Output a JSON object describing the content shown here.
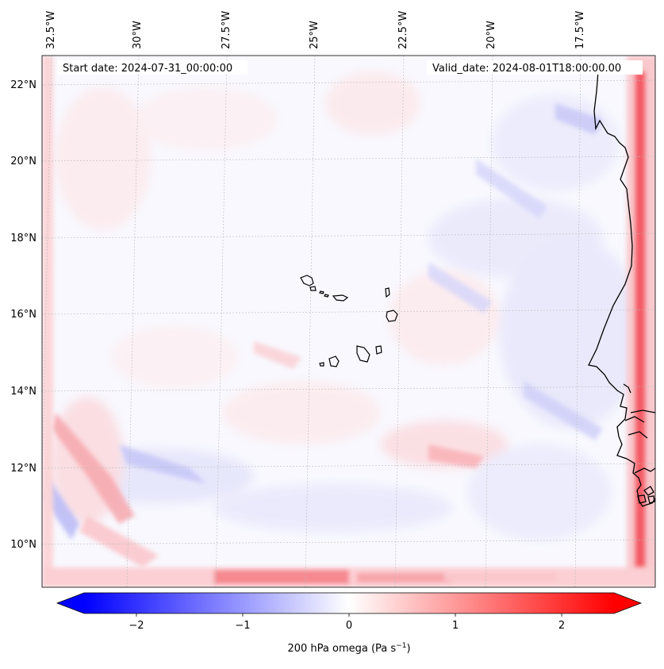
{
  "map": {
    "start_label": "Start date: 2024-07-31_00:00:00",
    "valid_label": "Valid_date: 2024-08-01T18:00:00.00",
    "lon_labels": [
      "32.5°W",
      "30°W",
      "27.5°W",
      "25°W",
      "22.5°W",
      "20°W",
      "17.5°W"
    ],
    "lat_labels": [
      "22°N",
      "20°N",
      "18°N",
      "16°N",
      "14°N",
      "12°N",
      "10°N"
    ],
    "field_name": "200 hPa omega",
    "colors": {
      "neg": "#0000ff",
      "zero": "#ffffff",
      "pos": "#ff0000",
      "coast": "#000000"
    }
  },
  "colorbar": {
    "ticks": [
      "−2",
      "−1",
      "0",
      "1",
      "2"
    ],
    "label": "200 hPa omega (Pa s",
    "label_sup": "−1",
    "label_end": ")",
    "vmin": -2.7,
    "vmax": 2.7
  }
}
